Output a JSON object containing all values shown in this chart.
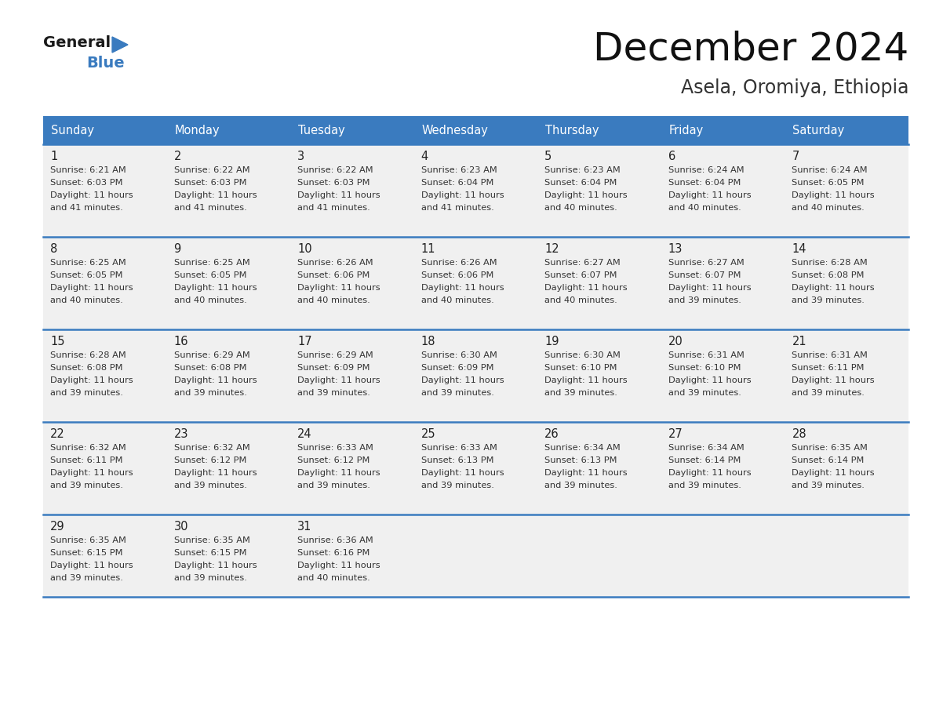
{
  "title": "December 2024",
  "subtitle": "Asela, Oromiya, Ethiopia",
  "header_color": "#3a7bbf",
  "header_text_color": "#ffffff",
  "cell_bg_color": "#f0f0f0",
  "border_color": "#3a7bbf",
  "text_color": "#333333",
  "days_of_week": [
    "Sunday",
    "Monday",
    "Tuesday",
    "Wednesday",
    "Thursday",
    "Friday",
    "Saturday"
  ],
  "weeks": [
    [
      {
        "day": 1,
        "sunrise": "6:21 AM",
        "sunset": "6:03 PM",
        "daylight_h": "11 hours",
        "daylight_m": "and 41 minutes."
      },
      {
        "day": 2,
        "sunrise": "6:22 AM",
        "sunset": "6:03 PM",
        "daylight_h": "11 hours",
        "daylight_m": "and 41 minutes."
      },
      {
        "day": 3,
        "sunrise": "6:22 AM",
        "sunset": "6:03 PM",
        "daylight_h": "11 hours",
        "daylight_m": "and 41 minutes."
      },
      {
        "day": 4,
        "sunrise": "6:23 AM",
        "sunset": "6:04 PM",
        "daylight_h": "11 hours",
        "daylight_m": "and 41 minutes."
      },
      {
        "day": 5,
        "sunrise": "6:23 AM",
        "sunset": "6:04 PM",
        "daylight_h": "11 hours",
        "daylight_m": "and 40 minutes."
      },
      {
        "day": 6,
        "sunrise": "6:24 AM",
        "sunset": "6:04 PM",
        "daylight_h": "11 hours",
        "daylight_m": "and 40 minutes."
      },
      {
        "day": 7,
        "sunrise": "6:24 AM",
        "sunset": "6:05 PM",
        "daylight_h": "11 hours",
        "daylight_m": "and 40 minutes."
      }
    ],
    [
      {
        "day": 8,
        "sunrise": "6:25 AM",
        "sunset": "6:05 PM",
        "daylight_h": "11 hours",
        "daylight_m": "and 40 minutes."
      },
      {
        "day": 9,
        "sunrise": "6:25 AM",
        "sunset": "6:05 PM",
        "daylight_h": "11 hours",
        "daylight_m": "and 40 minutes."
      },
      {
        "day": 10,
        "sunrise": "6:26 AM",
        "sunset": "6:06 PM",
        "daylight_h": "11 hours",
        "daylight_m": "and 40 minutes."
      },
      {
        "day": 11,
        "sunrise": "6:26 AM",
        "sunset": "6:06 PM",
        "daylight_h": "11 hours",
        "daylight_m": "and 40 minutes."
      },
      {
        "day": 12,
        "sunrise": "6:27 AM",
        "sunset": "6:07 PM",
        "daylight_h": "11 hours",
        "daylight_m": "and 40 minutes."
      },
      {
        "day": 13,
        "sunrise": "6:27 AM",
        "sunset": "6:07 PM",
        "daylight_h": "11 hours",
        "daylight_m": "and 39 minutes."
      },
      {
        "day": 14,
        "sunrise": "6:28 AM",
        "sunset": "6:08 PM",
        "daylight_h": "11 hours",
        "daylight_m": "and 39 minutes."
      }
    ],
    [
      {
        "day": 15,
        "sunrise": "6:28 AM",
        "sunset": "6:08 PM",
        "daylight_h": "11 hours",
        "daylight_m": "and 39 minutes."
      },
      {
        "day": 16,
        "sunrise": "6:29 AM",
        "sunset": "6:08 PM",
        "daylight_h": "11 hours",
        "daylight_m": "and 39 minutes."
      },
      {
        "day": 17,
        "sunrise": "6:29 AM",
        "sunset": "6:09 PM",
        "daylight_h": "11 hours",
        "daylight_m": "and 39 minutes."
      },
      {
        "day": 18,
        "sunrise": "6:30 AM",
        "sunset": "6:09 PM",
        "daylight_h": "11 hours",
        "daylight_m": "and 39 minutes."
      },
      {
        "day": 19,
        "sunrise": "6:30 AM",
        "sunset": "6:10 PM",
        "daylight_h": "11 hours",
        "daylight_m": "and 39 minutes."
      },
      {
        "day": 20,
        "sunrise": "6:31 AM",
        "sunset": "6:10 PM",
        "daylight_h": "11 hours",
        "daylight_m": "and 39 minutes."
      },
      {
        "day": 21,
        "sunrise": "6:31 AM",
        "sunset": "6:11 PM",
        "daylight_h": "11 hours",
        "daylight_m": "and 39 minutes."
      }
    ],
    [
      {
        "day": 22,
        "sunrise": "6:32 AM",
        "sunset": "6:11 PM",
        "daylight_h": "11 hours",
        "daylight_m": "and 39 minutes."
      },
      {
        "day": 23,
        "sunrise": "6:32 AM",
        "sunset": "6:12 PM",
        "daylight_h": "11 hours",
        "daylight_m": "and 39 minutes."
      },
      {
        "day": 24,
        "sunrise": "6:33 AM",
        "sunset": "6:12 PM",
        "daylight_h": "11 hours",
        "daylight_m": "and 39 minutes."
      },
      {
        "day": 25,
        "sunrise": "6:33 AM",
        "sunset": "6:13 PM",
        "daylight_h": "11 hours",
        "daylight_m": "and 39 minutes."
      },
      {
        "day": 26,
        "sunrise": "6:34 AM",
        "sunset": "6:13 PM",
        "daylight_h": "11 hours",
        "daylight_m": "and 39 minutes."
      },
      {
        "day": 27,
        "sunrise": "6:34 AM",
        "sunset": "6:14 PM",
        "daylight_h": "11 hours",
        "daylight_m": "and 39 minutes."
      },
      {
        "day": 28,
        "sunrise": "6:35 AM",
        "sunset": "6:14 PM",
        "daylight_h": "11 hours",
        "daylight_m": "and 39 minutes."
      }
    ],
    [
      {
        "day": 29,
        "sunrise": "6:35 AM",
        "sunset": "6:15 PM",
        "daylight_h": "11 hours",
        "daylight_m": "and 39 minutes."
      },
      {
        "day": 30,
        "sunrise": "6:35 AM",
        "sunset": "6:15 PM",
        "daylight_h": "11 hours",
        "daylight_m": "and 39 minutes."
      },
      {
        "day": 31,
        "sunrise": "6:36 AM",
        "sunset": "6:16 PM",
        "daylight_h": "11 hours",
        "daylight_m": "and 40 minutes."
      },
      null,
      null,
      null,
      null
    ]
  ]
}
